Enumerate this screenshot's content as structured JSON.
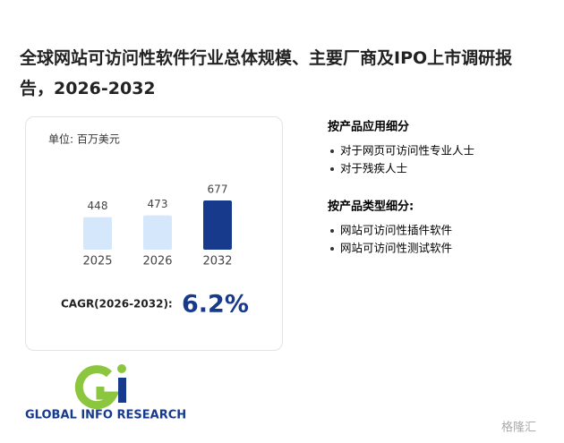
{
  "title": "全球网站可访问性软件行业总体规模、主要厂商及IPO上市调研报告，2026-2032",
  "chart_data": {
    "type": "bar",
    "unit": "单位: 百万美元",
    "categories": [
      "2025",
      "2026",
      "2032"
    ],
    "values": [
      448,
      473,
      677
    ],
    "colors": [
      "#d5e7fa",
      "#d5e7fa",
      "#183a8c"
    ],
    "cagr_label": "CAGR(2026-2032):",
    "cagr_value": "6.2%"
  },
  "sections": [
    {
      "heading": "按产品应用细分",
      "items": [
        "对于网页可访问性专业人士",
        "对于残疾人士"
      ]
    },
    {
      "heading": "按产品类型细分:",
      "items": [
        "网站可访问性插件软件",
        "网站可访问性测试软件"
      ]
    }
  ],
  "logo_text": "GLOBAL INFO RESEARCH",
  "watermark": "格隆汇"
}
